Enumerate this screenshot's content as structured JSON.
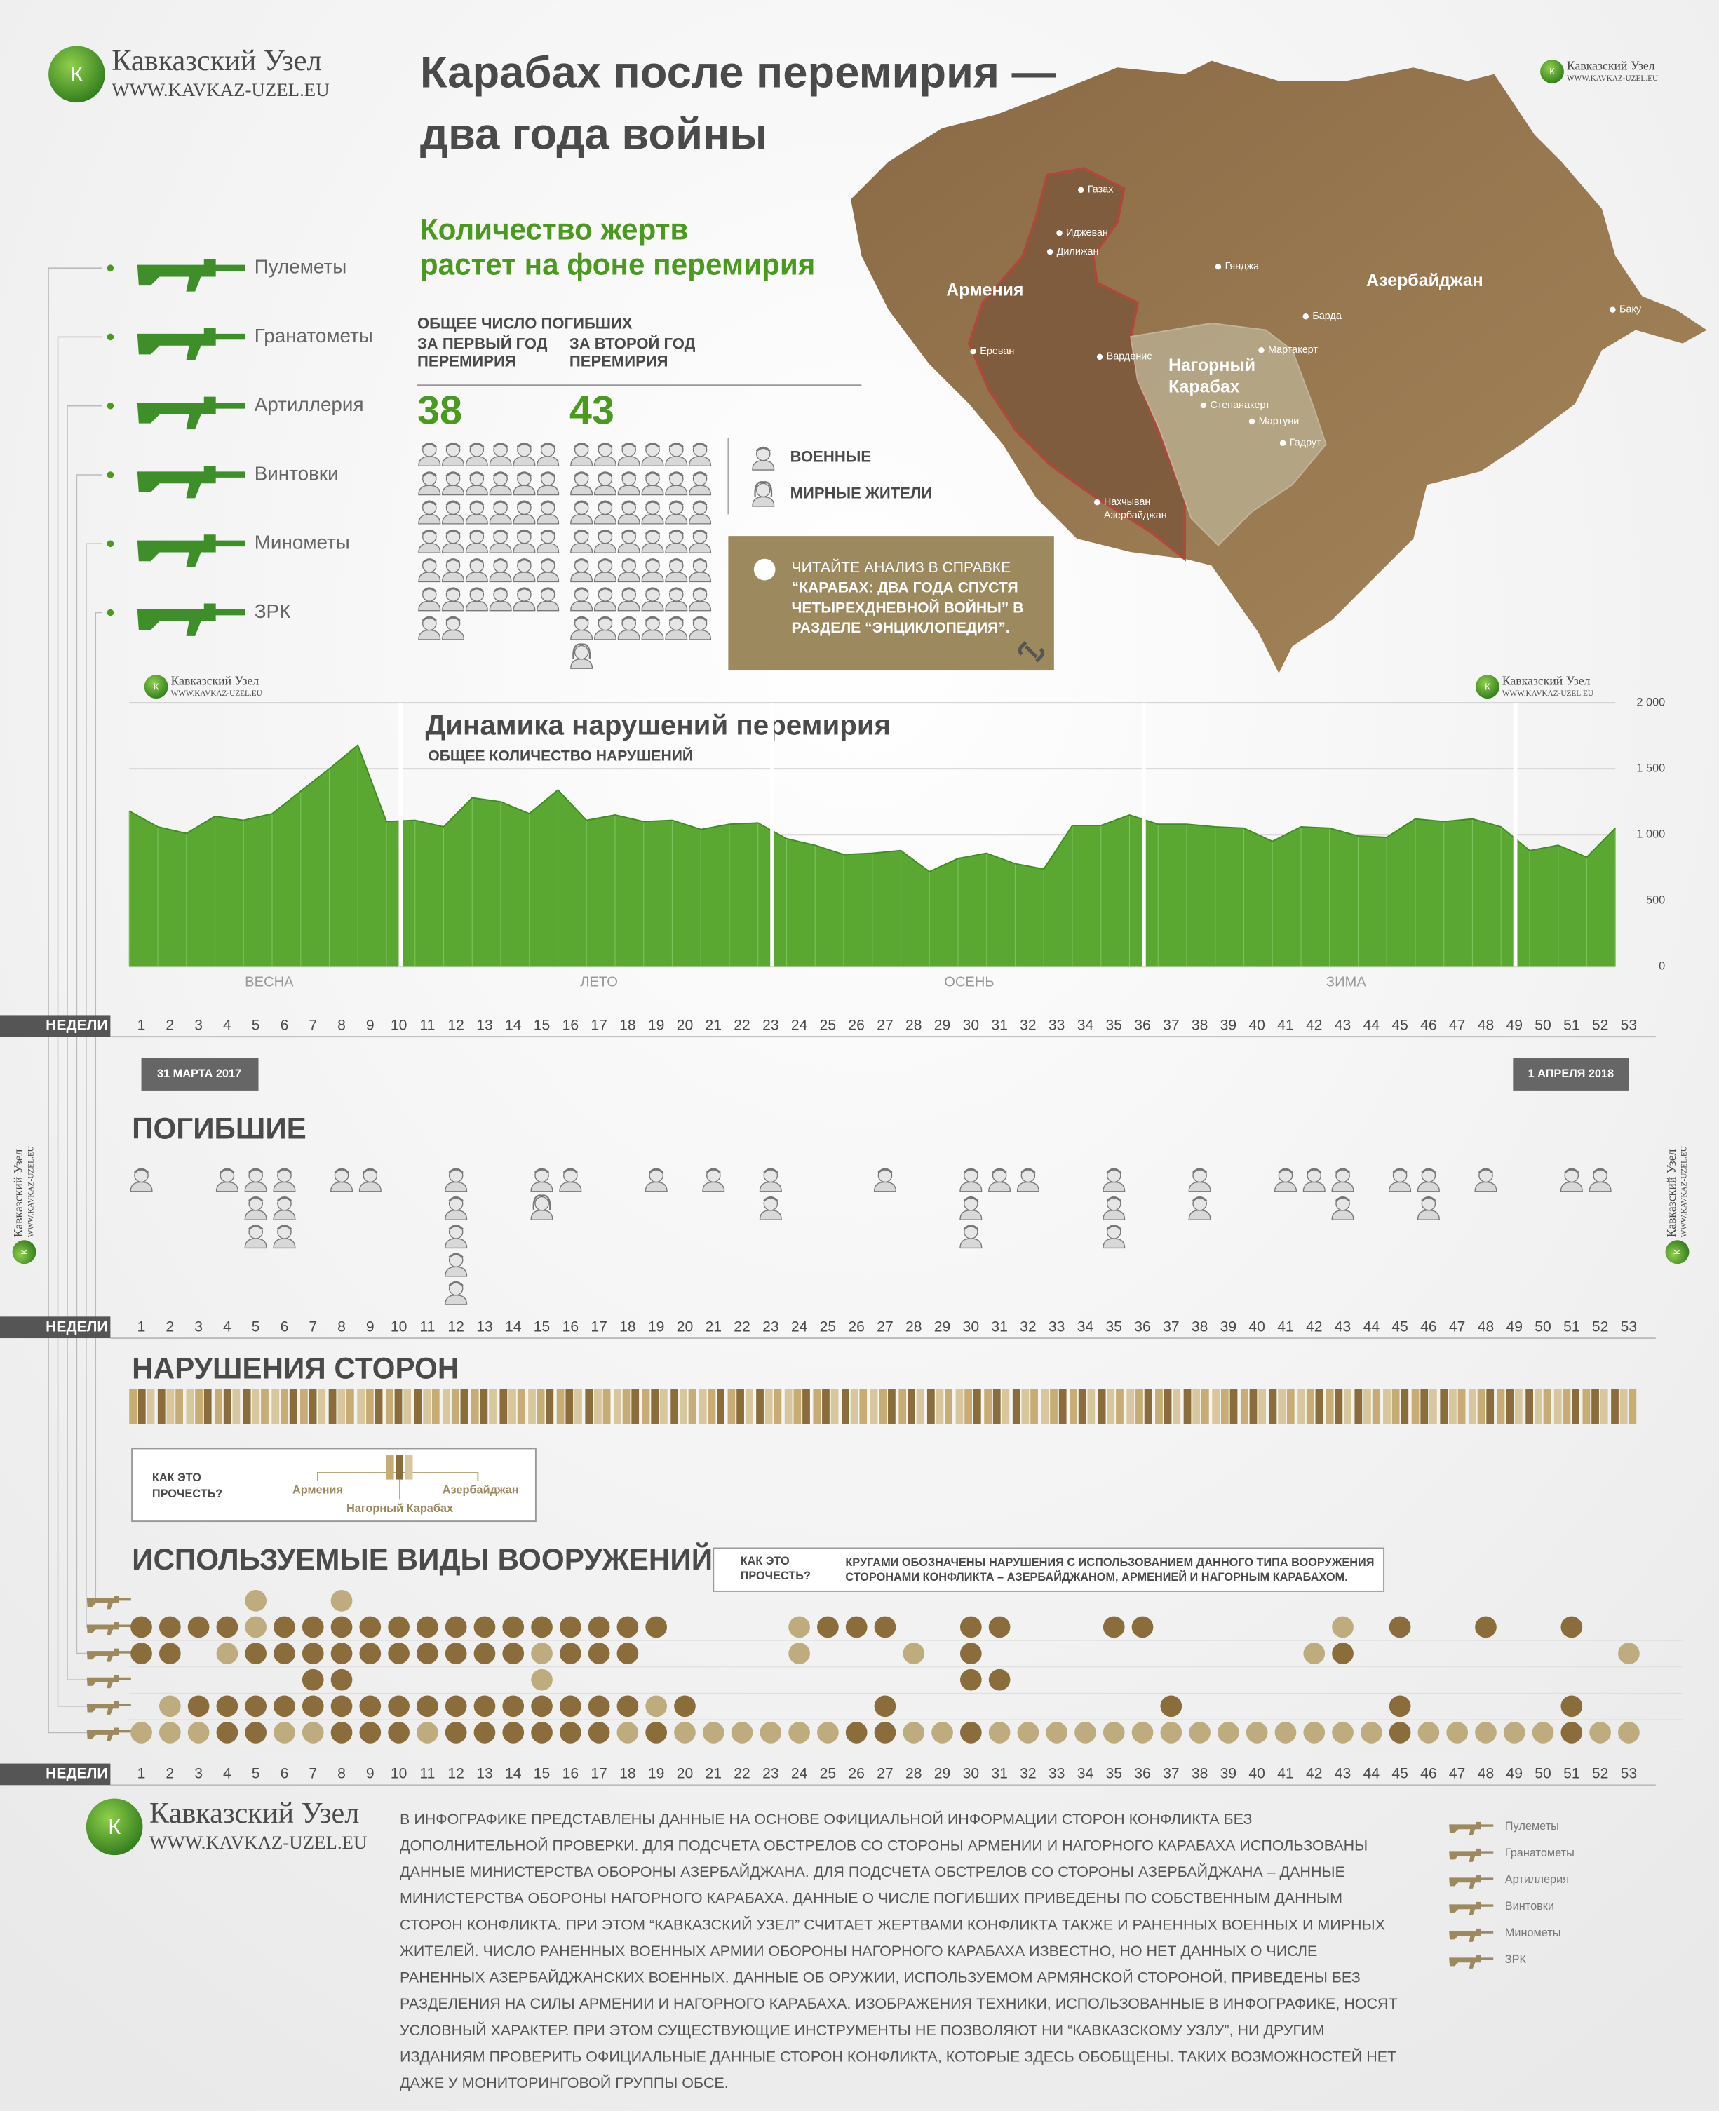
{
  "logo": {
    "name": "Кавказский Узел",
    "url": "WWW.KAVKAZ-UZEL.EU"
  },
  "header": {
    "title": [
      "Карабах после перемирия —",
      "два года войны"
    ]
  },
  "casualties": {
    "subtitle": [
      "Количество жертв",
      "растет на фоне перемирия"
    ],
    "total_label": "ОБЩЕЕ ЧИСЛО ПОГИБШИХ",
    "periods": [
      {
        "label": [
          "ЗА ПЕРВЫЙ ГОД",
          "ПЕРЕМИРИЯ"
        ],
        "value": 38,
        "civilian": 0
      },
      {
        "label": [
          "ЗА ВТОРОЙ ГОД",
          "ПЕРЕМИРИЯ"
        ],
        "value": 43,
        "civilian": 1
      }
    ],
    "legend": [
      "ВОЕННЫЕ",
      "МИРНЫЕ ЖИТЕЛИ"
    ]
  },
  "info": {
    "lines": [
      "ЧИТАЙТЕ АНАЛИЗ В СПРАВКЕ",
      "“КАРАБАХ: ДВА ГОДА СПУСТЯ",
      "ЧЕТЫРЕХДНЕВНОЙ ВОЙНЫ” В",
      "РАЗДЕЛЕ “ЭНЦИКЛОПЕДИЯ”."
    ]
  },
  "weapons": [
    "Пулеметы",
    "Гранатометы",
    "Артиллерия",
    "Винтовки",
    "Минометы",
    "ЗРК"
  ],
  "map": {
    "labels": [
      "Газах",
      "Иджеван",
      "Дилижан",
      "Гянджа",
      "Армения",
      "Азербайджан",
      "Барда",
      "Баку",
      "Ереван",
      "Варденис",
      "Мартакерт",
      "Нагорный",
      "Карабах",
      "Степанакерт",
      "Мартуни",
      "Гадрут",
      "Нахчыван",
      "Азербайджан"
    ]
  },
  "chart_data": {
    "type": "area",
    "title": "Динамика нарушений перемирия",
    "subtitle": "ОБЩЕЕ КОЛИЧЕСТВО НАРУШЕНИЙ",
    "categories": [
      1,
      2,
      3,
      4,
      5,
      6,
      7,
      8,
      9,
      10,
      11,
      12,
      13,
      14,
      15,
      16,
      17,
      18,
      19,
      20,
      21,
      22,
      23,
      24,
      25,
      26,
      27,
      28,
      29,
      30,
      31,
      32,
      33,
      34,
      35,
      36,
      37,
      38,
      39,
      40,
      41,
      42,
      43,
      44,
      45,
      46,
      47,
      48,
      49,
      50,
      51,
      52,
      53
    ],
    "values": [
      1180,
      1060,
      1010,
      1140,
      1110,
      1160,
      1330,
      1500,
      1680,
      1100,
      1110,
      1060,
      1280,
      1250,
      1160,
      1340,
      1110,
      1150,
      1100,
      1110,
      1040,
      1080,
      1090,
      970,
      920,
      850,
      860,
      880,
      720,
      820,
      860,
      780,
      740,
      1070,
      1070,
      1150,
      1080,
      1080,
      1060,
      1050,
      950,
      1060,
      1050,
      990,
      980,
      1120,
      1100,
      1120,
      1060,
      880,
      920,
      830,
      1050
    ],
    "color": "#5aa832",
    "ylim": [
      0,
      2000
    ],
    "yticks": [
      {
        "value": 2000,
        "label": "2 000"
      },
      {
        "value": 1500,
        "label": "1 500"
      },
      {
        "value": 1000,
        "label": "1 000"
      },
      500,
      0
    ],
    "grid": true,
    "seasons": [
      "ВЕСНА",
      "ЛЕТО",
      "ОСЕНЬ",
      "ЗИМА"
    ]
  },
  "weeks_label": "НЕДЕЛИ",
  "date_start": "31 МАРТА 2017",
  "date_end": "1 АПРЕЛЯ 2018",
  "deaths": {
    "title": "ПОГИБШИЕ",
    "weeks": [
      1,
      4,
      5,
      6,
      8,
      9,
      12,
      15,
      16,
      19,
      21,
      23,
      27,
      30,
      31,
      32,
      35,
      38,
      41,
      42,
      43,
      45,
      46,
      48,
      51,
      52
    ],
    "military": [
      1,
      1,
      3,
      3,
      1,
      1,
      5,
      1,
      1,
      1,
      1,
      2,
      1,
      3,
      1,
      1,
      3,
      2,
      1,
      1,
      2,
      1,
      2,
      1,
      1,
      1
    ],
    "civilian": [
      0,
      0,
      0,
      0,
      0,
      0,
      0,
      1,
      0,
      0,
      0,
      0,
      0,
      0,
      0,
      0,
      0,
      0,
      0,
      0,
      0,
      0,
      0,
      0,
      0,
      0
    ]
  },
  "violations": {
    "title": "НАРУШЕНИЯ СТОРОН",
    "how_to_read": [
      "КАК ЭТО",
      "ПРОЧЕСТЬ?"
    ],
    "sides": [
      "Армения",
      "Нагорный Карабах",
      "Азербайджан"
    ]
  },
  "weapons_usage": {
    "title": "ИСПОЛЬЗУЕМЫЕ ВИДЫ ВООРУЖЕНИЙ",
    "how_to_read": [
      "КАК ЭТО",
      "ПРОЧЕСТЬ?"
    ],
    "explanation": [
      "КРУГАМИ ОБОЗНАЧЕНЫ НАРУШЕНИЯ С ИСПОЛЬЗОВАНИЕМ ДАННОГО ТИПА ВООРУЖЕНИЯ",
      "СТОРОНАМИ КОНФЛИКТА – АЗЕРБАЙДЖАНОМ, АРМЕНИЕЙ И НАГОРНЫМ КАРАБАХОМ."
    ],
    "rows": [
      {
        "dark": [],
        "light": [
          5,
          8
        ]
      },
      {
        "dark": [
          1,
          2,
          3,
          4,
          6,
          7,
          8,
          9,
          10,
          11,
          12,
          13,
          14,
          15,
          16,
          17,
          18,
          19,
          25,
          26,
          27,
          30,
          31,
          35,
          36,
          45,
          48,
          51
        ],
        "light": [
          5,
          24,
          43
        ]
      },
      {
        "dark": [
          1,
          2,
          5,
          6,
          7,
          8,
          9,
          10,
          11,
          12,
          13,
          14,
          16,
          17,
          18,
          30,
          43
        ],
        "light": [
          4,
          15,
          24,
          28,
          42,
          53
        ]
      },
      {
        "dark": [
          7,
          8,
          30,
          31
        ],
        "light": [
          15
        ]
      },
      {
        "dark": [
          3,
          4,
          5,
          6,
          7,
          8,
          9,
          10,
          11,
          12,
          13,
          14,
          15,
          16,
          17,
          18,
          20,
          27,
          37,
          45,
          51
        ],
        "light": [
          2,
          19
        ]
      },
      {
        "dark": [
          4,
          5,
          8,
          9,
          10,
          12,
          13,
          14,
          15,
          16,
          17,
          19,
          26,
          27,
          30,
          45,
          51
        ],
        "light": [
          1,
          2,
          3,
          6,
          7,
          11,
          18,
          20,
          21,
          22,
          23,
          24,
          25,
          28,
          29,
          31,
          32,
          33,
          34,
          35,
          36,
          37,
          38,
          39,
          40,
          41,
          42,
          43,
          44,
          46,
          47,
          48,
          49,
          50,
          52,
          53
        ]
      }
    ]
  },
  "footer": {
    "text": [
      "В ИНФОГРАФИКЕ ПРЕДСТАВЛЕНЫ ДАННЫЕ НА ОСНОВЕ ОФИЦИАЛЬНОЙ ИНФОРМАЦИИ СТОРОН КОНФЛИКТА БЕЗ",
      "ДОПОЛНИТЕЛЬНОЙ ПРОВЕРКИ. ДЛЯ ПОДСЧЕТА ОБСТРЕЛОВ СО СТОРОНЫ АРМЕНИИ И НАГОРНОГО КАРАБАХА ИСПОЛЬЗОВАНЫ",
      "ДАННЫЕ МИНИСТЕРСТВА ОБОРОНЫ АЗЕРБАЙДЖАНА. ДЛЯ ПОДСЧЕТА ОБСТРЕЛОВ СО СТОРОНЫ АЗЕРБАЙДЖАНА – ДАННЫЕ",
      "МИНИСТЕРСТВА ОБОРОНЫ НАГОРНОГО КАРАБАХА. ДАННЫЕ О ЧИСЛЕ ПОГИБШИХ ПРИВЕДЕНЫ ПО СОБСТВЕННЫМ ДАННЫМ",
      "СТОРОН КОНФЛИКТА. ПРИ ЭТОМ “КАВКАЗСКИЙ УЗЕЛ” СЧИТАЕТ ЖЕРТВАМИ КОНФЛИКТА ТАКЖЕ И РАНЕННЫХ ВОЕННЫХ И МИРНЫХ",
      "ЖИТЕЛЕЙ. ЧИСЛО РАНЕННЫХ ВОЕННЫХ АРМИИ ОБОРОНЫ НАГОРНОГО КАРАБАХА ИЗВЕСТНО, НО НЕТ ДАННЫХ О ЧИСЛЕ",
      "РАНЕННЫХ АЗЕРБАЙДЖАНСКИХ ВОЕННЫХ. ДАННЫЕ ОБ ОРУЖИИ, ИСПОЛЬЗУЕМОМ АРМЯНСКОЙ СТОРОНОЙ, ПРИВЕДЕНЫ БЕЗ",
      "РАЗДЕЛЕНИЯ НА СИЛЫ АРМЕНИИ И НАГОРНОГО КАРАБАХА. ИЗОБРАЖЕНИЯ ТЕХНИКИ, ИСПОЛЬЗОВАННЫЕ В ИНФОГРАФИКЕ, НОСЯТ",
      "УСЛОВНЫЙ ХАРАКТЕР. ПРИ ЭТОМ СУЩЕСТВУЮЩИЕ ИНСТРУМЕНТЫ НЕ ПОЗВОЛЯЮТ НИ “КАВКАЗСКОМУ УЗЛУ”, НИ ДРУГИМ",
      "ИЗДАНИЯМ ПРОВЕРИТЬ ОФИЦИАЛЬНЫЕ ДАННЫЕ СТОРОН КОНФЛИКТА, КОТОРЫЕ ЗДЕСЬ ОБОБЩЕНЫ. ТАКИХ ВОЗМОЖНОСТЕЙ НЕТ",
      "ДАЖЕ У МОНИТОРИНГОВОЙ ГРУППЫ ОБСЕ."
    ]
  }
}
